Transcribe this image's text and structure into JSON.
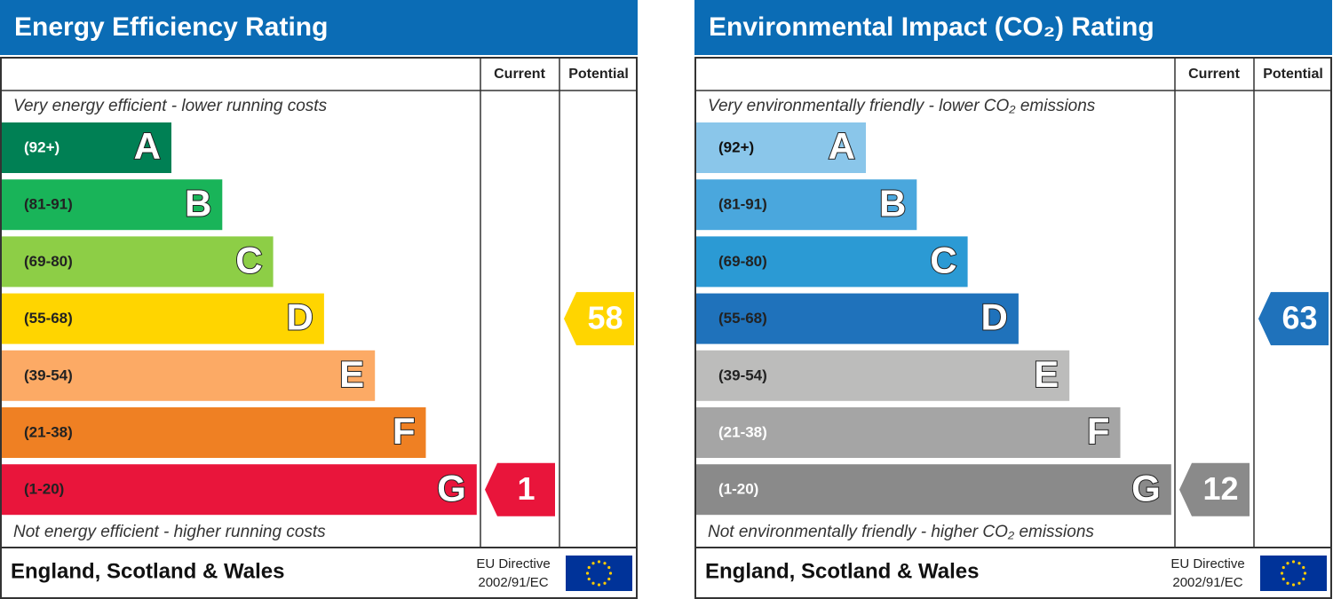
{
  "panels": [
    {
      "title": "Energy Efficiency Rating",
      "current_header": "Current",
      "potential_header": "Potential",
      "top_note": "Very energy efficient - lower running costs",
      "bottom_note": "Not energy efficient - higher running costs",
      "bands": [
        {
          "range": "(92+)",
          "letter": "A",
          "color": "#008054",
          "text_color": "#ffffff"
        },
        {
          "range": "(81-91)",
          "letter": "B",
          "color": "#19b459",
          "text_color": "#222222"
        },
        {
          "range": "(69-80)",
          "letter": "C",
          "color": "#8dce46",
          "text_color": "#222222"
        },
        {
          "range": "(55-68)",
          "letter": "D",
          "color": "#ffd500",
          "text_color": "#222222"
        },
        {
          "range": "(39-54)",
          "letter": "E",
          "color": "#fcaa65",
          "text_color": "#222222"
        },
        {
          "range": "(21-38)",
          "letter": "F",
          "color": "#ef8023",
          "text_color": "#222222"
        },
        {
          "range": "(1-20)",
          "letter": "G",
          "color": "#e9153b",
          "text_color": "#222222"
        }
      ],
      "current": 1,
      "potential": 58,
      "footer": "England, Scotland & Wales",
      "directive": [
        "EU Directive",
        "2002/91/EC"
      ]
    },
    {
      "title": "Environmental Impact (CO₂) Rating",
      "current_header": "Current",
      "potential_header": "Potential",
      "top_note": "Very environmentally friendly - lower CO₂ emissions",
      "bottom_note": "Not environmentally friendly - higher CO₂ emissions",
      "bands": [
        {
          "range": "(92+)",
          "letter": "A",
          "color": "#8ac6ea",
          "text_color": "#111111"
        },
        {
          "range": "(81-91)",
          "letter": "B",
          "color": "#4aa7dd",
          "text_color": "#222222"
        },
        {
          "range": "(69-80)",
          "letter": "C",
          "color": "#2b9ad4",
          "text_color": "#222222"
        },
        {
          "range": "(55-68)",
          "letter": "D",
          "color": "#1f72bb",
          "text_color": "#222222"
        },
        {
          "range": "(39-54)",
          "letter": "E",
          "color": "#bcbcbb",
          "text_color": "#222222"
        },
        {
          "range": "(21-38)",
          "letter": "F",
          "color": "#a5a5a5",
          "text_color": "#ffffff"
        },
        {
          "range": "(1-20)",
          "letter": "G",
          "color": "#8a8a8a",
          "text_color": "#ffffff"
        }
      ],
      "current": 12,
      "potential": 63,
      "footer": "England, Scotland & Wales",
      "directive": [
        "EU Directive",
        "2002/91/EC"
      ]
    }
  ]
}
